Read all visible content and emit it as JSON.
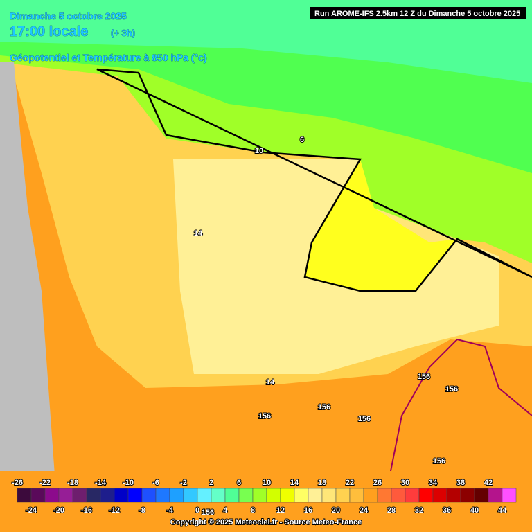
{
  "header": {
    "date": "Dimanche 5 octobre 2025",
    "time": "17:00 locale",
    "offset": "(+ 3h)",
    "parameter": "Géopotentiel et Température à 850 hPa (°c)",
    "run": "Run AROME-IFS 2.5km 12 Z du Dimanche 5 octobre 2025"
  },
  "map": {
    "contour_labels": [
      "6",
      "10",
      "14",
      "14",
      "156",
      "156",
      "156",
      "156",
      "156",
      "156",
      "156"
    ]
  },
  "legend": {
    "top_labels": [
      -26,
      -22,
      -18,
      -14,
      -10,
      -6,
      -2,
      2,
      6,
      10,
      14,
      18,
      22,
      26,
      30,
      34,
      38,
      42
    ],
    "bottom_labels": [
      -24,
      -20,
      -16,
      -12,
      -8,
      -4,
      0,
      4,
      8,
      12,
      16,
      20,
      24,
      28,
      32,
      36,
      40,
      44
    ],
    "colors": [
      "#3c0a3c",
      "#5a0a5a",
      "#8c0a8c",
      "#961e96",
      "#6e1e6e",
      "#282864",
      "#1e1e8c",
      "#0000c8",
      "#0000ff",
      "#1e50ff",
      "#1e78ff",
      "#1ea0ff",
      "#32c8ff",
      "#64f0ff",
      "#64ffc8",
      "#50ff96",
      "#78ff50",
      "#a0ff28",
      "#d2ff00",
      "#f0ff00",
      "#ffff64",
      "#fff096",
      "#ffe678",
      "#ffd250",
      "#ffbe3c",
      "#ffa01e",
      "#ff7832",
      "#ff5a3c",
      "#ff3c3c",
      "#ff0000",
      "#dc0000",
      "#b40000",
      "#8c0000",
      "#640000",
      "#b4148c",
      "#ff50ff"
    ]
  },
  "footer": {
    "copyright": "Copyright © 2025 Meteociel.fr - Source Meteo-France"
  }
}
